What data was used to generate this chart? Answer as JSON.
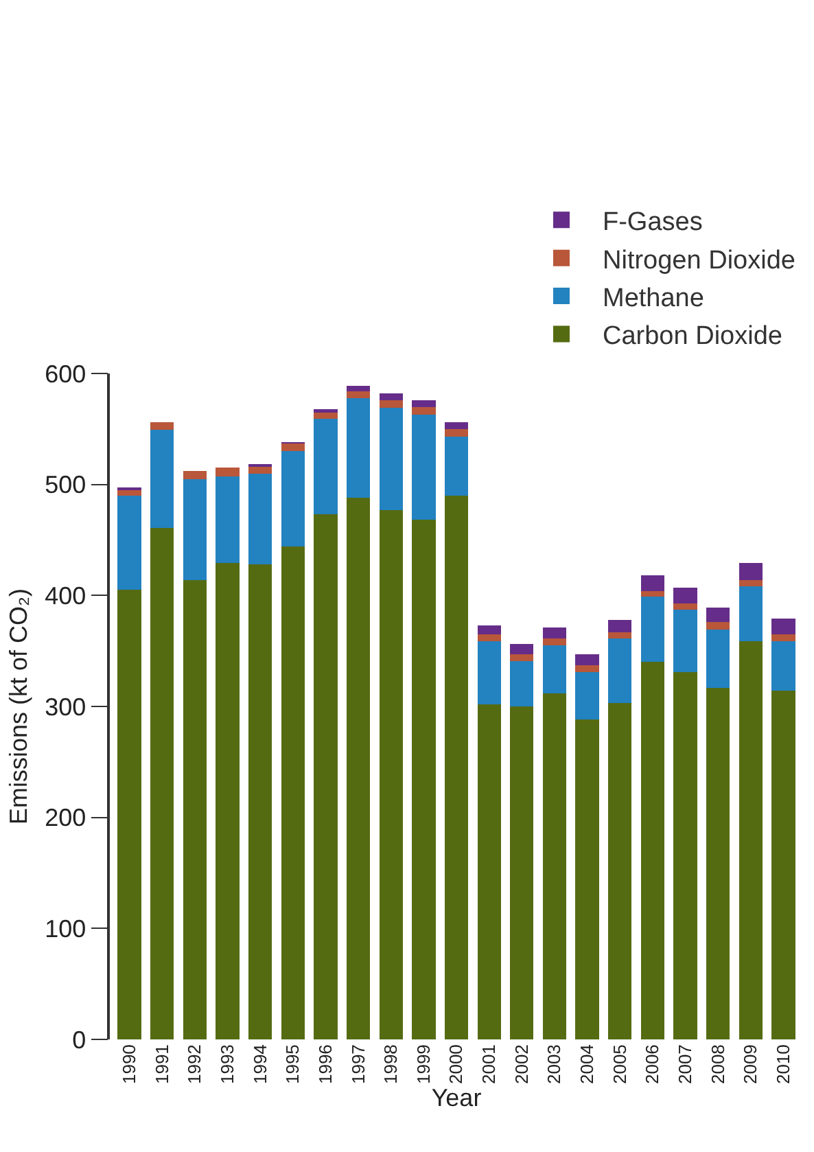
{
  "chart_data": {
    "type": "bar",
    "stacked": true,
    "xlabel": "Year",
    "ylabel": "Emissions (kt of CO₂)",
    "categories": [
      "1990",
      "1991",
      "1992",
      "1993",
      "1994",
      "1995",
      "1996",
      "1997",
      "1998",
      "1999",
      "2000",
      "2001",
      "2002",
      "2003",
      "2004",
      "2005",
      "2006",
      "2007",
      "2008",
      "2009",
      "2010"
    ],
    "series": [
      {
        "name": "Carbon Dioxide",
        "color": "#556b12",
        "values": [
          405,
          461,
          414,
          429,
          428,
          444,
          473,
          488,
          477,
          468,
          490,
          302,
          300,
          312,
          288,
          303,
          340,
          331,
          317,
          359,
          314
        ]
      },
      {
        "name": "Methane",
        "color": "#2382c0",
        "values": [
          85,
          88,
          91,
          78,
          82,
          86,
          86,
          90,
          92,
          95,
          53,
          57,
          41,
          43,
          43,
          58,
          59,
          56,
          52,
          49,
          45
        ]
      },
      {
        "name": "Nitrogen Dioxide",
        "color": "#b9573a",
        "values": [
          6,
          7,
          7,
          8,
          7,
          7,
          6,
          6,
          7,
          7,
          7,
          6,
          6,
          6,
          6,
          6,
          5,
          6,
          7,
          6,
          6
        ]
      },
      {
        "name": "F-Gases",
        "color": "#652d89",
        "values": [
          1,
          0,
          0,
          0,
          1,
          1,
          3,
          5,
          6,
          6,
          6,
          8,
          9,
          10,
          10,
          11,
          14,
          14,
          13,
          15,
          14
        ]
      }
    ],
    "ylim": [
      0,
      600
    ],
    "yticks": [
      0,
      100,
      200,
      300,
      400,
      500,
      600
    ],
    "grid": false,
    "legend": "top right"
  }
}
